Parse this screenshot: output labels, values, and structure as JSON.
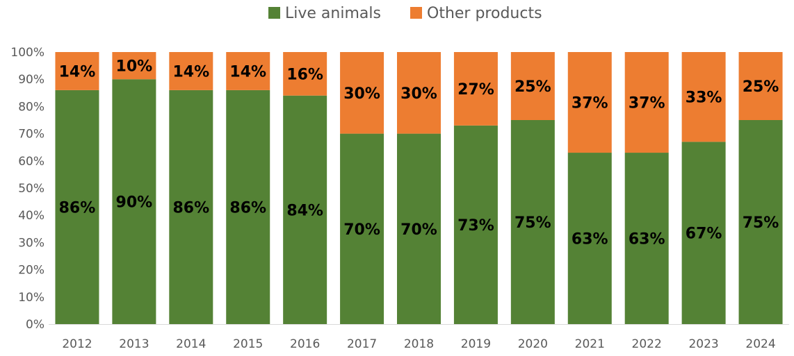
{
  "chart_data": {
    "type": "bar",
    "stacked": true,
    "percent_stacked": true,
    "categories": [
      "2012",
      "2013",
      "2014",
      "2015",
      "2016",
      "2017",
      "2018",
      "2019",
      "2020",
      "2021",
      "2022",
      "2023",
      "2024"
    ],
    "series": [
      {
        "name": "Live animals",
        "color": "#548235",
        "values": [
          86,
          90,
          86,
          86,
          84,
          70,
          70,
          73,
          75,
          63,
          63,
          67,
          75
        ],
        "labels": [
          "86%",
          "90%",
          "86%",
          "86%",
          "84%",
          "70%",
          "70%",
          "73%",
          "75%",
          "63%",
          "63%",
          "67%",
          "75%"
        ]
      },
      {
        "name": "Other products",
        "color": "#ED7D31",
        "values": [
          14,
          10,
          14,
          14,
          16,
          30,
          30,
          27,
          25,
          37,
          37,
          33,
          25
        ],
        "labels": [
          "14%",
          "10%",
          "14%",
          "14%",
          "16%",
          "30%",
          "30%",
          "27%",
          "25%",
          "37%",
          "37%",
          "33%",
          "25%"
        ]
      }
    ],
    "y_ticks": [
      "0%",
      "10%",
      "20%",
      "30%",
      "40%",
      "50%",
      "60%",
      "70%",
      "80%",
      "90%",
      "100%"
    ],
    "ylim": [
      0,
      100
    ],
    "grid": false,
    "legend_position": "top-center",
    "title": "",
    "xlabel": "",
    "ylabel": ""
  }
}
